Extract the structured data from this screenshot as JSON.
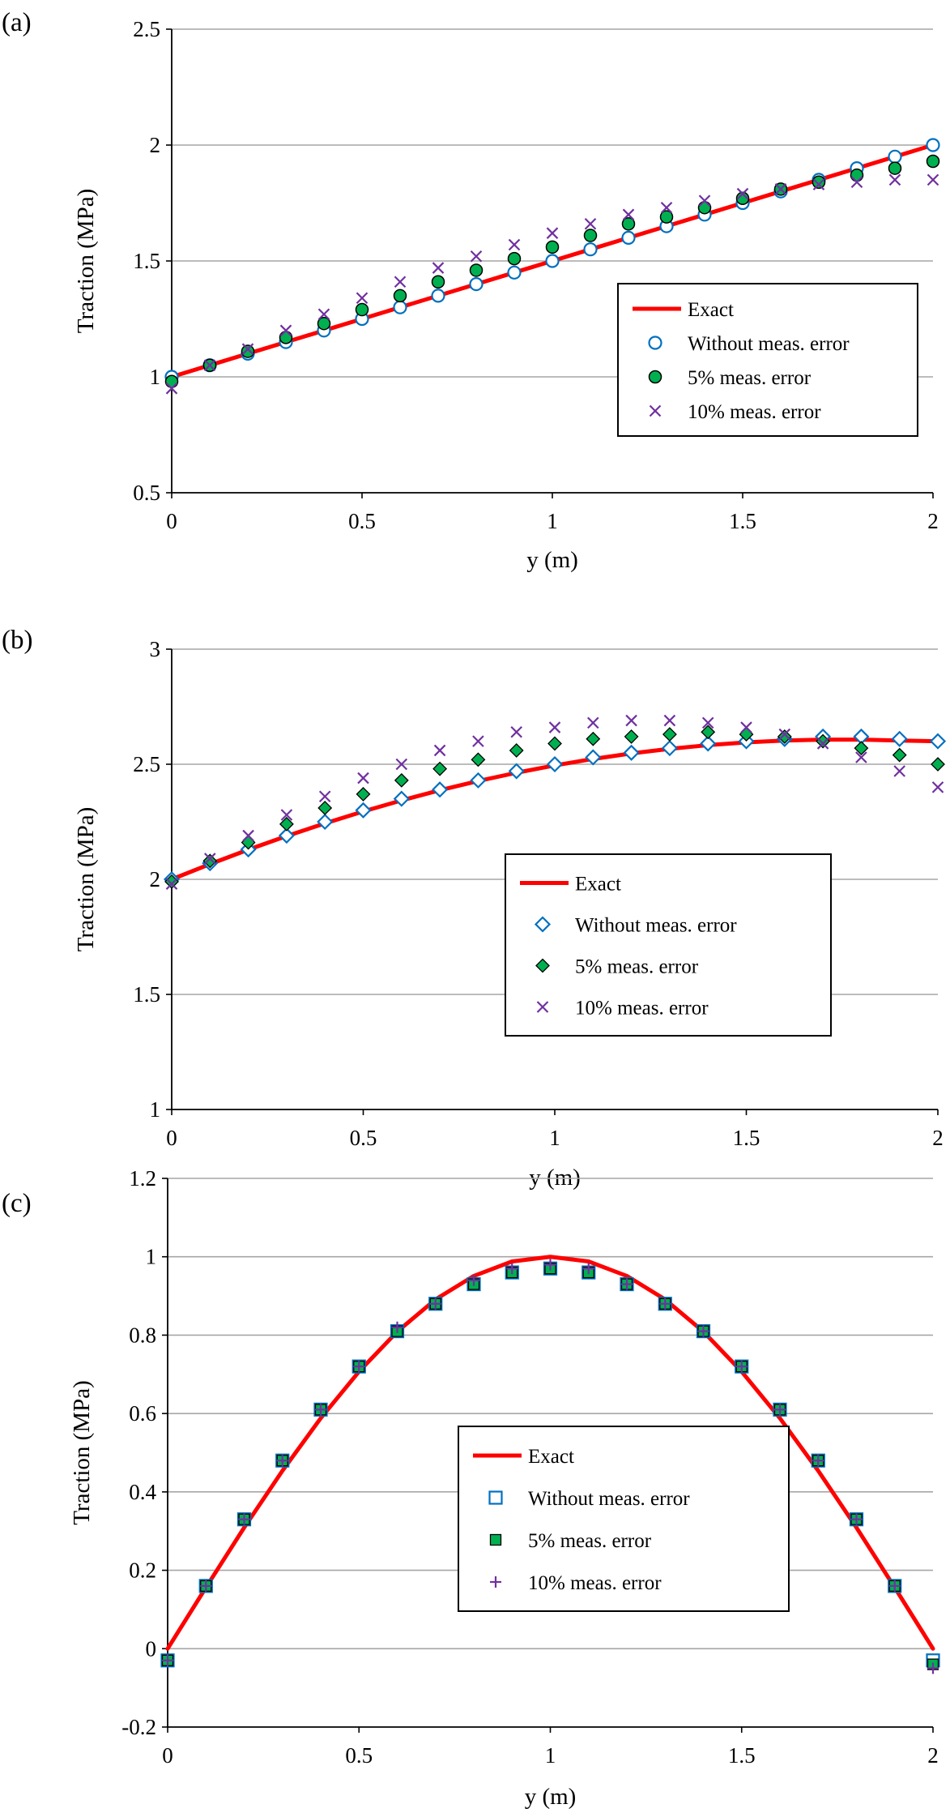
{
  "figure": {
    "panels": [
      "(a)",
      "(b)",
      "(c)"
    ]
  },
  "legend_labels": {
    "exact": "Exact",
    "without": "Without meas. error",
    "five": "5% meas. error",
    "ten": "10% meas. error"
  },
  "colors": {
    "exact": "#ff0000",
    "without": "#0070c0",
    "five_fill": "#00b050",
    "ten": "#7030a0",
    "grid": "#a6a6a6",
    "axis": "#000000"
  },
  "chart_data": [
    {
      "panel": "(a)",
      "type": "scatter",
      "title": "",
      "xlabel": "y (m)",
      "ylabel": "Traction (MPa)",
      "xlim": [
        0,
        2
      ],
      "ylim": [
        0.5,
        2.5
      ],
      "xticks": [
        0,
        0.5,
        1,
        1.5,
        2
      ],
      "yticks": [
        0.5,
        1,
        1.5,
        2,
        2.5
      ],
      "legend_position": "right",
      "series": [
        {
          "name": "Exact",
          "kind": "line",
          "x": [
            0,
            0.1,
            0.2,
            0.3,
            0.4,
            0.5,
            0.6,
            0.7,
            0.8,
            0.9,
            1,
            1.1,
            1.2,
            1.3,
            1.4,
            1.5,
            1.6,
            1.7,
            1.8,
            1.9,
            2
          ],
          "y": [
            1,
            1.05,
            1.1,
            1.15,
            1.2,
            1.25,
            1.3,
            1.35,
            1.4,
            1.45,
            1.5,
            1.55,
            1.6,
            1.65,
            1.7,
            1.75,
            1.8,
            1.85,
            1.9,
            1.95,
            2
          ]
        },
        {
          "name": "Without meas. error",
          "kind": "markers",
          "marker": "circle-open",
          "x": [
            0,
            0.1,
            0.2,
            0.3,
            0.4,
            0.5,
            0.6,
            0.7,
            0.8,
            0.9,
            1,
            1.1,
            1.2,
            1.3,
            1.4,
            1.5,
            1.6,
            1.7,
            1.8,
            1.9,
            2
          ],
          "y": [
            1,
            1.05,
            1.1,
            1.15,
            1.2,
            1.25,
            1.3,
            1.35,
            1.4,
            1.45,
            1.5,
            1.55,
            1.6,
            1.65,
            1.7,
            1.75,
            1.8,
            1.85,
            1.9,
            1.95,
            2
          ]
        },
        {
          "name": "5% meas. error",
          "kind": "markers",
          "marker": "circle-filled",
          "x": [
            0,
            0.1,
            0.2,
            0.3,
            0.4,
            0.5,
            0.6,
            0.7,
            0.8,
            0.9,
            1,
            1.1,
            1.2,
            1.3,
            1.4,
            1.5,
            1.6,
            1.7,
            1.8,
            1.9,
            2
          ],
          "y": [
            0.98,
            1.05,
            1.11,
            1.17,
            1.23,
            1.29,
            1.35,
            1.41,
            1.46,
            1.51,
            1.56,
            1.61,
            1.66,
            1.69,
            1.73,
            1.77,
            1.81,
            1.84,
            1.87,
            1.9,
            1.93
          ]
        },
        {
          "name": "10% meas. error",
          "kind": "markers",
          "marker": "x",
          "x": [
            0,
            0.1,
            0.2,
            0.3,
            0.4,
            0.5,
            0.6,
            0.7,
            0.8,
            0.9,
            1,
            1.1,
            1.2,
            1.3,
            1.4,
            1.5,
            1.6,
            1.7,
            1.8,
            1.9,
            2
          ],
          "y": [
            0.95,
            1.05,
            1.12,
            1.2,
            1.27,
            1.34,
            1.41,
            1.47,
            1.52,
            1.57,
            1.62,
            1.66,
            1.7,
            1.73,
            1.76,
            1.79,
            1.81,
            1.83,
            1.84,
            1.85,
            1.85
          ]
        }
      ]
    },
    {
      "panel": "(b)",
      "type": "scatter",
      "title": "",
      "xlabel": "y (m)",
      "ylabel": "Traction (MPa)",
      "xlim": [
        0,
        2
      ],
      "ylim": [
        1,
        3
      ],
      "xticks": [
        0,
        0.5,
        1,
        1.5,
        2
      ],
      "yticks": [
        1,
        1.5,
        2,
        2.5,
        3
      ],
      "legend_position": "center-right",
      "series": [
        {
          "name": "Exact",
          "kind": "line",
          "x": [
            0,
            0.1,
            0.2,
            0.3,
            0.4,
            0.5,
            0.6,
            0.7,
            0.8,
            0.9,
            1,
            1.1,
            1.2,
            1.3,
            1.4,
            1.5,
            1.6,
            1.7,
            1.8,
            1.9,
            2
          ],
          "y": [
            2,
            2.066,
            2.129,
            2.188,
            2.243,
            2.295,
            2.343,
            2.387,
            2.427,
            2.463,
            2.495,
            2.523,
            2.547,
            2.567,
            2.583,
            2.595,
            2.603,
            2.607,
            2.607,
            2.603,
            2.6
          ]
        },
        {
          "name": "Without meas. error",
          "kind": "markers",
          "marker": "diamond-open",
          "x": [
            0,
            0.1,
            0.2,
            0.3,
            0.4,
            0.5,
            0.6,
            0.7,
            0.8,
            0.9,
            1,
            1.1,
            1.2,
            1.3,
            1.4,
            1.5,
            1.6,
            1.7,
            1.8,
            1.9,
            2
          ],
          "y": [
            2,
            2.07,
            2.13,
            2.19,
            2.25,
            2.3,
            2.35,
            2.39,
            2.43,
            2.47,
            2.5,
            2.53,
            2.55,
            2.57,
            2.59,
            2.6,
            2.61,
            2.62,
            2.62,
            2.61,
            2.6
          ]
        },
        {
          "name": "5% meas. error",
          "kind": "markers",
          "marker": "diamond-filled",
          "x": [
            0,
            0.1,
            0.2,
            0.3,
            0.4,
            0.5,
            0.6,
            0.7,
            0.8,
            0.9,
            1,
            1.1,
            1.2,
            1.3,
            1.4,
            1.5,
            1.6,
            1.7,
            1.8,
            1.9,
            2
          ],
          "y": [
            1.99,
            2.08,
            2.16,
            2.24,
            2.31,
            2.37,
            2.43,
            2.48,
            2.52,
            2.56,
            2.59,
            2.61,
            2.62,
            2.63,
            2.64,
            2.63,
            2.62,
            2.6,
            2.57,
            2.54,
            2.5
          ]
        },
        {
          "name": "10% meas. error",
          "kind": "markers",
          "marker": "x",
          "x": [
            0,
            0.1,
            0.2,
            0.3,
            0.4,
            0.5,
            0.6,
            0.7,
            0.8,
            0.9,
            1,
            1.1,
            1.2,
            1.3,
            1.4,
            1.5,
            1.6,
            1.7,
            1.8,
            1.9,
            2
          ],
          "y": [
            1.98,
            2.09,
            2.19,
            2.28,
            2.36,
            2.44,
            2.5,
            2.56,
            2.6,
            2.64,
            2.66,
            2.68,
            2.69,
            2.69,
            2.68,
            2.66,
            2.63,
            2.59,
            2.53,
            2.47,
            2.4
          ]
        }
      ]
    },
    {
      "panel": "(c)",
      "type": "scatter",
      "title": "",
      "xlabel": "y (m)",
      "ylabel": "Traction (MPa)",
      "xlim": [
        0,
        2
      ],
      "ylim": [
        -0.2,
        1.2
      ],
      "xticks": [
        0,
        0.5,
        1,
        1.5,
        2
      ],
      "yticks": [
        -0.2,
        0,
        0.2,
        0.4,
        0.6,
        0.8,
        1,
        1.2
      ],
      "legend_position": "bottom-center",
      "series": [
        {
          "name": "Exact",
          "kind": "line",
          "x": [
            0,
            0.1,
            0.2,
            0.3,
            0.4,
            0.5,
            0.6,
            0.7,
            0.8,
            0.9,
            1,
            1.1,
            1.2,
            1.3,
            1.4,
            1.5,
            1.6,
            1.7,
            1.8,
            1.9,
            2
          ],
          "y": [
            0,
            0.156,
            0.309,
            0.454,
            0.588,
            0.707,
            0.809,
            0.891,
            0.951,
            0.988,
            1,
            0.988,
            0.951,
            0.891,
            0.809,
            0.707,
            0.588,
            0.454,
            0.309,
            0.156,
            0
          ]
        },
        {
          "name": "Without meas. error",
          "kind": "markers",
          "marker": "square-open",
          "x": [
            0,
            0.1,
            0.2,
            0.3,
            0.4,
            0.5,
            0.6,
            0.7,
            0.8,
            0.9,
            1,
            1.1,
            1.2,
            1.3,
            1.4,
            1.5,
            1.6,
            1.7,
            1.8,
            1.9,
            2
          ],
          "y": [
            -0.03,
            0.16,
            0.33,
            0.48,
            0.61,
            0.72,
            0.81,
            0.88,
            0.93,
            0.96,
            0.97,
            0.96,
            0.93,
            0.88,
            0.81,
            0.72,
            0.61,
            0.48,
            0.33,
            0.16,
            -0.03
          ]
        },
        {
          "name": "5% meas. error",
          "kind": "markers",
          "marker": "square-filled",
          "x": [
            0,
            0.1,
            0.2,
            0.3,
            0.4,
            0.5,
            0.6,
            0.7,
            0.8,
            0.9,
            1,
            1.1,
            1.2,
            1.3,
            1.4,
            1.5,
            1.6,
            1.7,
            1.8,
            1.9,
            2
          ],
          "y": [
            -0.03,
            0.16,
            0.33,
            0.48,
            0.61,
            0.72,
            0.81,
            0.88,
            0.93,
            0.96,
            0.97,
            0.96,
            0.93,
            0.88,
            0.81,
            0.72,
            0.61,
            0.48,
            0.33,
            0.16,
            -0.04
          ]
        },
        {
          "name": "10% meas. error",
          "kind": "markers",
          "marker": "plus",
          "x": [
            0,
            0.1,
            0.2,
            0.3,
            0.4,
            0.5,
            0.6,
            0.7,
            0.8,
            0.9,
            1,
            1.1,
            1.2,
            1.3,
            1.4,
            1.5,
            1.6,
            1.7,
            1.8,
            1.9,
            2
          ],
          "y": [
            -0.03,
            0.16,
            0.33,
            0.48,
            0.61,
            0.72,
            0.82,
            0.88,
            0.94,
            0.97,
            0.98,
            0.97,
            0.93,
            0.88,
            0.81,
            0.72,
            0.61,
            0.48,
            0.33,
            0.16,
            -0.05
          ]
        }
      ]
    }
  ]
}
